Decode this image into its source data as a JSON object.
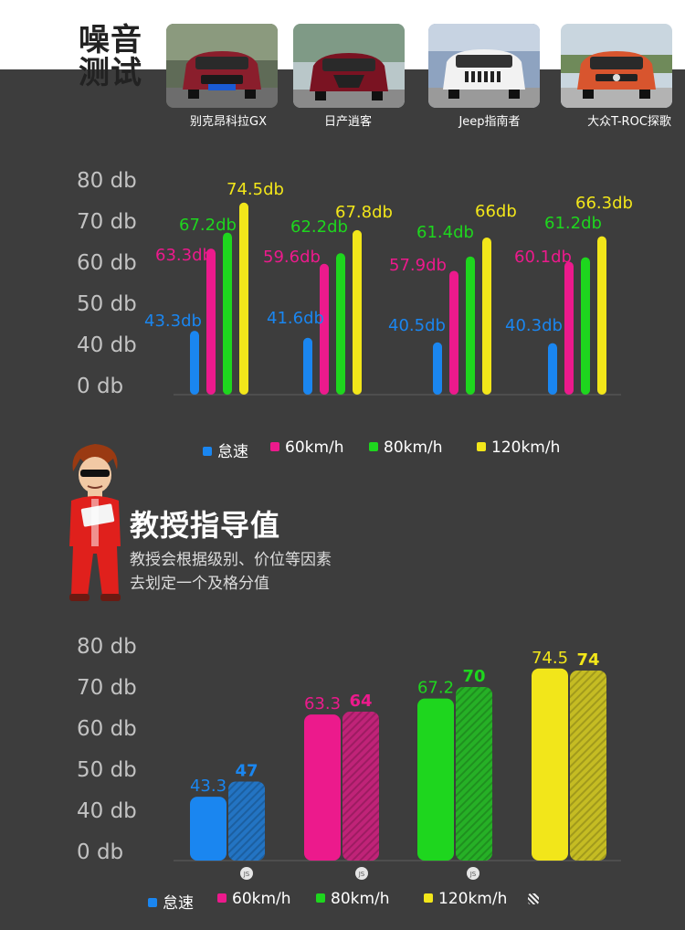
{
  "header": {
    "badge_lines": [
      "噪音",
      "测试"
    ],
    "cars": [
      {
        "name": "别克昂科拉GX",
        "color": "#8a1e2c",
        "plate": "B6.38P5RR"
      },
      {
        "name": "日产逍客",
        "color": "#7a1322"
      },
      {
        "name": "Jeep指南者",
        "color": "#f2f2f2"
      },
      {
        "name": "大众T-ROC探歌",
        "color": "#d8552e"
      }
    ]
  },
  "colors": {
    "idle": "#1a86f0",
    "s60": "#ec1a8c",
    "s80": "#1ed61e",
    "s120": "#f2e61a"
  },
  "chart_data": [
    {
      "type": "bar",
      "categories": [
        "别克昂科拉GX",
        "日产逍客",
        "Jeep指南者",
        "大众T-ROC探歌"
      ],
      "series": [
        {
          "name": "怠速",
          "values": [
            43.3,
            41.6,
            40.5,
            40.3
          ]
        },
        {
          "name": "60km/h",
          "values": [
            63.3,
            59.6,
            57.9,
            60.1
          ]
        },
        {
          "name": "80km/h",
          "values": [
            67.2,
            62.2,
            61.4,
            61.2
          ]
        },
        {
          "name": "120km/h",
          "values": [
            74.5,
            67.8,
            66,
            66.3
          ]
        }
      ],
      "data_labels": [
        [
          "43.3db",
          "41.6db",
          "40.5db",
          "40.3db"
        ],
        [
          "63.3db",
          "59.6db",
          "57.9db",
          "60.1db"
        ],
        [
          "67.2db",
          "62.2db",
          "61.4db",
          "61.2db"
        ],
        [
          "74.5db",
          "67.8db",
          "66db",
          "66.3db"
        ]
      ],
      "yticks": [
        "80 db",
        "70 db",
        "60 db",
        "50 db",
        "40 db",
        "0 db"
      ],
      "legend": [
        "怠速",
        "60km/h",
        "80km/h",
        "120km/h"
      ],
      "legend_position": "bottom"
    },
    {
      "type": "bar",
      "categories": [
        "怠速",
        "60km/h",
        "80km/h",
        "120km/h"
      ],
      "series": [
        {
          "name": "",
          "values": [
            43.3,
            63.3,
            67.2,
            74.5
          ]
        },
        {
          "name": "",
          "values": [
            47,
            64,
            70,
            74
          ]
        }
      ],
      "data_labels": [
        [
          "43.3",
          "63.3",
          "67.2",
          "74.5"
        ],
        [
          "47",
          "64",
          "70",
          "74"
        ]
      ],
      "yticks": [
        "80 db",
        "70 db",
        "60 db",
        "50 db",
        "40 db",
        "0 db"
      ],
      "legend": [
        "怠速",
        "60km/h",
        "80km/h",
        "120km/h"
      ],
      "legend_position": "bottom",
      "js_labels": [
        "JS",
        "JS",
        "JS"
      ]
    }
  ],
  "professor": {
    "title": "教授指导值",
    "desc": [
      "教授会根据级别、价位等因素",
      "去划定一个及格分值"
    ]
  }
}
